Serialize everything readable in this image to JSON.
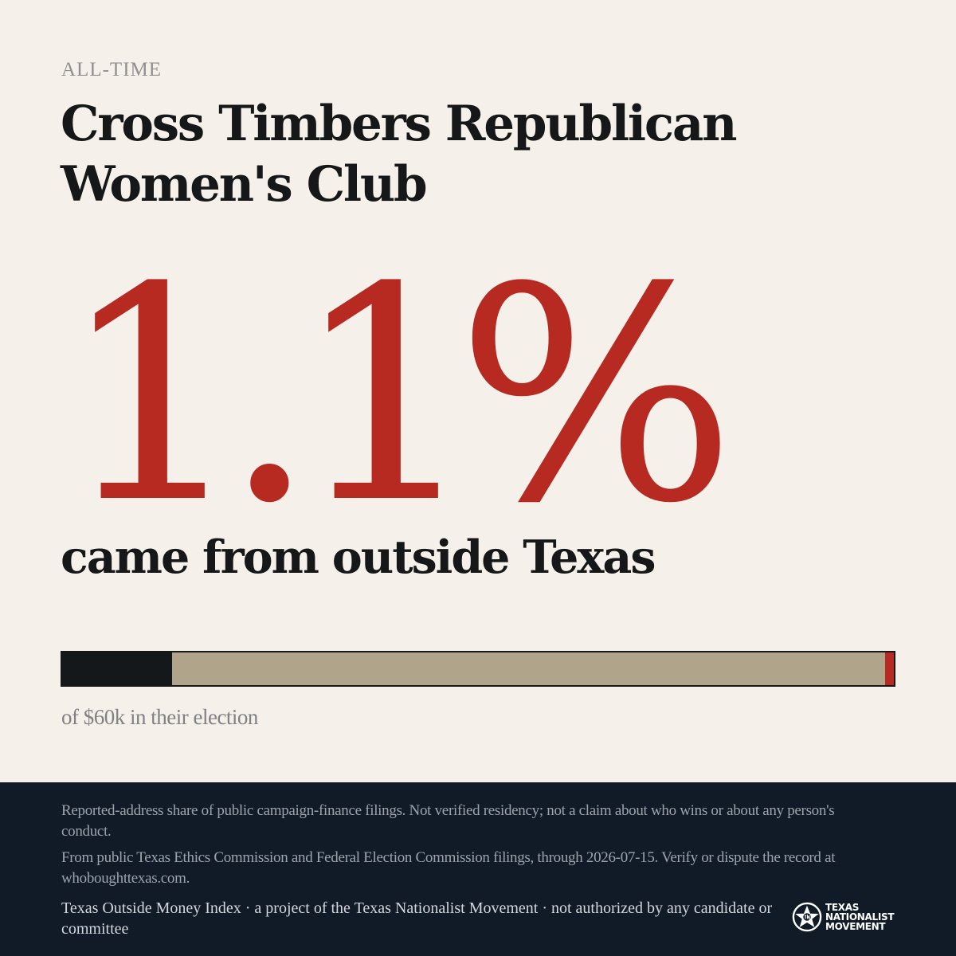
{
  "header": {
    "kicker": "ALL-TIME",
    "title": "Cross Timbers Republican Women's Club"
  },
  "headline": {
    "percent": "1.1%",
    "subline": "came from outside Texas"
  },
  "bar": {
    "outside_share_percent": 1.1,
    "caption": "of $60k in their election"
  },
  "colors": {
    "background": "#f5f1ea",
    "accent_red": "#b62a22",
    "dark": "#161718",
    "tan": "#b0a48b",
    "footer_navy": "#111b28"
  },
  "footer": {
    "disclaimer": "Reported-address share of public campaign-finance filings. Not verified residency; not a claim about who wins or about any person's conduct.",
    "source": "From public Texas Ethics Commission and Federal Election Commission filings, through 2026-07-15. Verify or dispute the record at whoboughttexas.com.",
    "credit": "Texas Outside Money Index · a project of the Texas Nationalist Movement · not authorized by any candidate or committee",
    "logo": {
      "icon": "star-circle-icon",
      "line1": "TEXAS",
      "line2": "NATIONALIST",
      "line3": "MOVEMENT"
    }
  }
}
